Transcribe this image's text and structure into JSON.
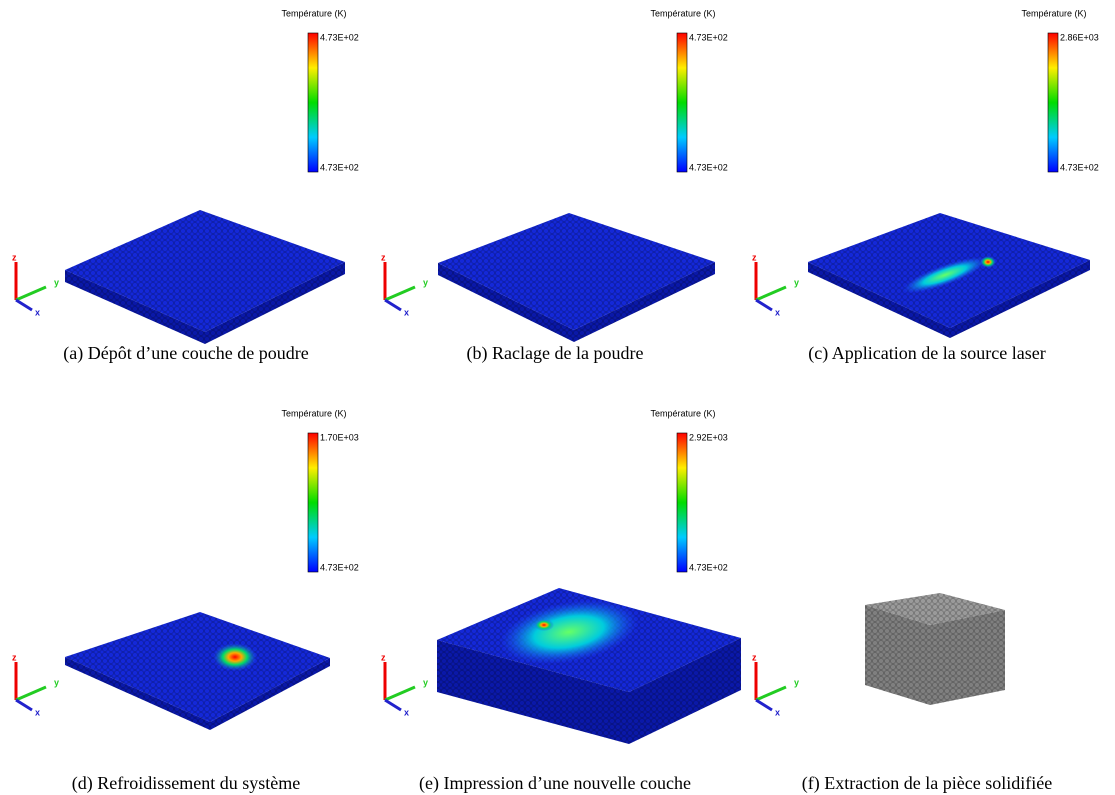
{
  "panels": [
    {
      "caption": "(a)  Dépôt d’une couche de poudre",
      "colorbar": {
        "title": "Température (K)",
        "max": "4.73E+02",
        "min": "4.73E+02"
      },
      "axes": {
        "z": "z",
        "y": "y",
        "x": "x"
      }
    },
    {
      "caption": "(b)  Raclage de la poudre",
      "colorbar": {
        "title": "Température (K)",
        "max": "4.73E+02",
        "min": "4.73E+02"
      },
      "axes": {
        "z": "z",
        "y": "y",
        "x": "x"
      }
    },
    {
      "caption": "(c)  Application de la source laser",
      "colorbar": {
        "title": "Température (K)",
        "max": "2.86E+03",
        "min": "4.73E+02"
      },
      "axes": {
        "z": "z",
        "y": "y",
        "x": "x"
      }
    },
    {
      "caption": "(d)  Refroidissement du système",
      "colorbar": {
        "title": "Température (K)",
        "max": "1.70E+03",
        "min": "4.73E+02"
      },
      "axes": {
        "z": "z",
        "y": "y",
        "x": "x"
      }
    },
    {
      "caption": "(e)  Impression d’une nouvelle couche",
      "colorbar": {
        "title": "Température (K)",
        "max": "2.92E+03",
        "min": "4.73E+02"
      },
      "axes": {
        "z": "z",
        "y": "y",
        "x": "x"
      }
    },
    {
      "caption": "(f)  Extraction de la pièce solidifiée",
      "axes": {
        "z": "z",
        "y": "y",
        "x": "x"
      }
    }
  ]
}
